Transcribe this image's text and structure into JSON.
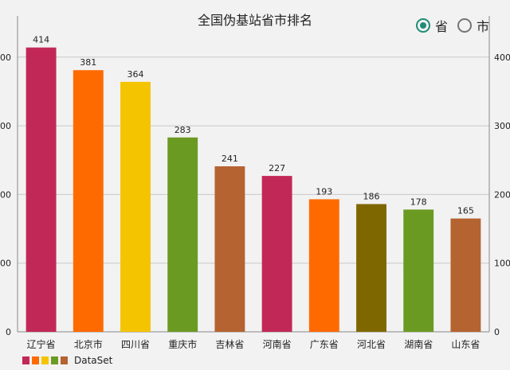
{
  "chart_data": {
    "type": "bar",
    "title": "全国伪基站省市排名",
    "categories": [
      "辽宁省",
      "北京市",
      "四川省",
      "重庆市",
      "吉林省",
      "河南省",
      "广东省",
      "河北省",
      "湖南省",
      "山东省"
    ],
    "series": [
      {
        "name": "DataSet",
        "values": [
          414,
          381,
          364,
          283,
          241,
          227,
          193,
          186,
          178,
          165
        ]
      }
    ],
    "colors": [
      "#c22857",
      "#ff6a00",
      "#f5c400",
      "#6b9a22",
      "#b56331",
      "#c22857",
      "#ff6a00",
      "#7f6700",
      "#6b9a22",
      "#b56331"
    ],
    "ylim": [
      0,
      460
    ],
    "yticks": [
      0,
      100,
      200,
      300,
      400
    ],
    "grid": true,
    "legend_position": "bottom-left"
  },
  "radio": {
    "options": [
      {
        "label": "省",
        "checked": true
      },
      {
        "label": "市",
        "checked": false
      }
    ]
  },
  "legend": {
    "label": "DataSet",
    "swatch_colors": [
      "#c22857",
      "#ff6a00",
      "#f5c400",
      "#6b9a22",
      "#b56331"
    ]
  }
}
